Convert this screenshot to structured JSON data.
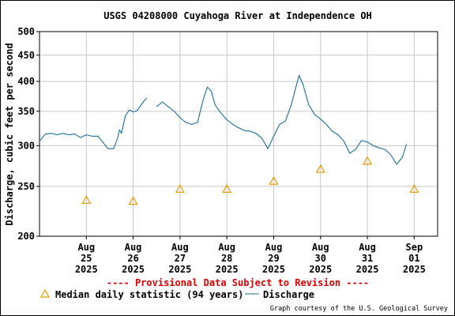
{
  "chart_data": {
    "type": "line",
    "title": "USGS 04208000 Cuyahoga River at Independence OH",
    "ylabel": "Discharge, cubic feet per second",
    "y_scale": "log",
    "ylim": [
      200,
      500
    ],
    "y_ticks": [
      200,
      250,
      300,
      350,
      400,
      450,
      500
    ],
    "y_tick_labels": [
      "200",
      "250",
      "300",
      "350",
      "400",
      "450",
      "500"
    ],
    "xlim": [
      "2025-08-24",
      "2025-09-01T12:00"
    ],
    "grid": true,
    "x_ticks": [
      {
        "x": "2025-08-25",
        "lines": [
          "Aug",
          "25",
          "2025"
        ]
      },
      {
        "x": "2025-08-26",
        "lines": [
          "Aug",
          "26",
          "2025"
        ]
      },
      {
        "x": "2025-08-27",
        "lines": [
          "Aug",
          "27",
          "2025"
        ]
      },
      {
        "x": "2025-08-28",
        "lines": [
          "Aug",
          "28",
          "2025"
        ]
      },
      {
        "x": "2025-08-29",
        "lines": [
          "Aug",
          "29",
          "2025"
        ]
      },
      {
        "x": "2025-08-30",
        "lines": [
          "Aug",
          "30",
          "2025"
        ]
      },
      {
        "x": "2025-08-31",
        "lines": [
          "Aug",
          "31",
          "2025"
        ]
      },
      {
        "x": "2025-09-01",
        "lines": [
          "Sep",
          "01",
          "2025"
        ]
      }
    ],
    "series": [
      {
        "name": "Median daily statistic (94 years)",
        "kind": "markers",
        "color": "#e89a00",
        "points": [
          {
            "x": "2025-08-25",
            "y": 235
          },
          {
            "x": "2025-08-26",
            "y": 234
          },
          {
            "x": "2025-08-27",
            "y": 247
          },
          {
            "x": "2025-08-28",
            "y": 247
          },
          {
            "x": "2025-08-29",
            "y": 256
          },
          {
            "x": "2025-08-30",
            "y": 270
          },
          {
            "x": "2025-08-31",
            "y": 280
          },
          {
            "x": "2025-09-01",
            "y": 247
          }
        ]
      },
      {
        "name": "Discharge",
        "kind": "line",
        "color": "#1a6e9e",
        "segments": [
          [
            {
              "x": "2025-08-24T00:00",
              "y": 306
            },
            {
              "x": "2025-08-24T03:00",
              "y": 316
            },
            {
              "x": "2025-08-24T06:00",
              "y": 317
            },
            {
              "x": "2025-08-24T09:00",
              "y": 315
            },
            {
              "x": "2025-08-24T12:00",
              "y": 317
            },
            {
              "x": "2025-08-24T15:00",
              "y": 315
            },
            {
              "x": "2025-08-24T18:00",
              "y": 316
            },
            {
              "x": "2025-08-24T21:00",
              "y": 311
            },
            {
              "x": "2025-08-25T00:00",
              "y": 315
            },
            {
              "x": "2025-08-25T03:00",
              "y": 313
            },
            {
              "x": "2025-08-25T06:00",
              "y": 313
            },
            {
              "x": "2025-08-25T09:00",
              "y": 303
            },
            {
              "x": "2025-08-25T11:00",
              "y": 296
            },
            {
              "x": "2025-08-25T14:00",
              "y": 296
            },
            {
              "x": "2025-08-25T16:00",
              "y": 310
            },
            {
              "x": "2025-08-25T17:00",
              "y": 322
            },
            {
              "x": "2025-08-25T18:00",
              "y": 317
            },
            {
              "x": "2025-08-25T20:00",
              "y": 343
            },
            {
              "x": "2025-08-25T22:00",
              "y": 352
            },
            {
              "x": "2025-08-26T00:00",
              "y": 349
            },
            {
              "x": "2025-08-26T02:00",
              "y": 351
            },
            {
              "x": "2025-08-26T04:00",
              "y": 360
            },
            {
              "x": "2025-08-26T06:00",
              "y": 368
            },
            {
              "x": "2025-08-26T07:00",
              "y": 371
            }
          ],
          [
            {
              "x": "2025-08-26T12:00",
              "y": 357
            },
            {
              "x": "2025-08-26T15:00",
              "y": 365
            },
            {
              "x": "2025-08-26T18:00",
              "y": 357
            },
            {
              "x": "2025-08-26T21:00",
              "y": 350
            },
            {
              "x": "2025-08-27T00:00",
              "y": 340
            },
            {
              "x": "2025-08-27T03:00",
              "y": 333
            },
            {
              "x": "2025-08-27T06:00",
              "y": 330
            },
            {
              "x": "2025-08-27T09:00",
              "y": 333
            },
            {
              "x": "2025-08-27T12:00",
              "y": 370
            },
            {
              "x": "2025-08-27T14:00",
              "y": 390
            },
            {
              "x": "2025-08-27T16:00",
              "y": 383
            },
            {
              "x": "2025-08-27T18:00",
              "y": 360
            },
            {
              "x": "2025-08-27T21:00",
              "y": 347
            },
            {
              "x": "2025-08-28T00:00",
              "y": 337
            },
            {
              "x": "2025-08-28T03:00",
              "y": 330
            },
            {
              "x": "2025-08-28T06:00",
              "y": 325
            },
            {
              "x": "2025-08-28T09:00",
              "y": 321
            },
            {
              "x": "2025-08-28T12:00",
              "y": 320
            },
            {
              "x": "2025-08-28T15:00",
              "y": 317
            },
            {
              "x": "2025-08-28T18:00",
              "y": 310
            },
            {
              "x": "2025-08-28T21:00",
              "y": 296
            },
            {
              "x": "2025-08-29T00:00",
              "y": 313
            },
            {
              "x": "2025-08-29T03:00",
              "y": 330
            },
            {
              "x": "2025-08-29T06:00",
              "y": 335
            },
            {
              "x": "2025-08-29T09:00",
              "y": 360
            },
            {
              "x": "2025-08-29T11:00",
              "y": 385
            },
            {
              "x": "2025-08-29T13:00",
              "y": 411
            },
            {
              "x": "2025-08-29T15:00",
              "y": 395
            },
            {
              "x": "2025-08-29T18:00",
              "y": 360
            },
            {
              "x": "2025-08-29T21:00",
              "y": 345
            },
            {
              "x": "2025-08-30T00:00",
              "y": 338
            },
            {
              "x": "2025-08-30T03:00",
              "y": 330
            },
            {
              "x": "2025-08-30T06:00",
              "y": 320
            },
            {
              "x": "2025-08-30T09:00",
              "y": 315
            },
            {
              "x": "2025-08-30T12:00",
              "y": 306
            },
            {
              "x": "2025-08-30T15:00",
              "y": 290
            },
            {
              "x": "2025-08-30T18:00",
              "y": 295
            },
            {
              "x": "2025-08-30T21:00",
              "y": 307
            },
            {
              "x": "2025-08-31T00:00",
              "y": 305
            },
            {
              "x": "2025-08-31T03:00",
              "y": 300
            },
            {
              "x": "2025-08-31T06:00",
              "y": 297
            },
            {
              "x": "2025-08-31T09:00",
              "y": 295
            },
            {
              "x": "2025-08-31T12:00",
              "y": 288
            },
            {
              "x": "2025-08-31T15:00",
              "y": 276
            },
            {
              "x": "2025-08-31T18:00",
              "y": 285
            },
            {
              "x": "2025-08-31T20:00",
              "y": 302
            }
          ]
        ]
      }
    ]
  },
  "footer": {
    "provisional": "---- Provisional Data Subject to Revision ----",
    "provisional_color": "#dd0000",
    "credit": "Graph courtesy of the U.S. Geological Survey"
  }
}
